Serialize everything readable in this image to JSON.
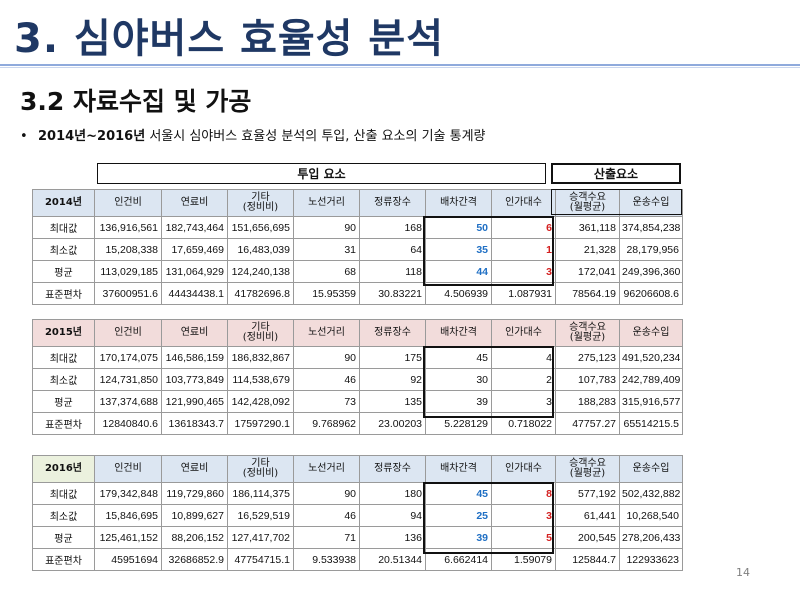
{
  "slide": {
    "title": "3. 심야버스 효율성 분석",
    "subtitle": "3.2 자료수집 및 가공",
    "bullet_marker": "•",
    "bullet_bold": "2014년~2016년",
    "bullet_rest": " 서울시 심야버스 효율성 분석의 투입, 산출 요소의 기술 통계량",
    "page_number": "14"
  },
  "groups": {
    "input_label": "투입 요소",
    "output_label": "산출요소"
  },
  "columns": [
    "인건비",
    "연료비",
    "기타\n(정비비)",
    "노선거리",
    "정류장수",
    "배차간격",
    "인가대수",
    "승객수요\n(월평균)",
    "운송수입"
  ],
  "tables": [
    {
      "year": "2014년",
      "rows": [
        {
          "label": "최대값",
          "cells": [
            "136,916,561",
            "182,743,464",
            "151,656,695",
            "90",
            "168",
            "50",
            "6",
            "361,118",
            "374,854,238"
          ]
        },
        {
          "label": "최소값",
          "cells": [
            "15,208,338",
            "17,659,469",
            "16,483,039",
            "31",
            "64",
            "35",
            "1",
            "21,328",
            "28,179,956"
          ]
        },
        {
          "label": "평균",
          "cells": [
            "113,029,185",
            "131,064,929",
            "124,240,138",
            "68",
            "118",
            "44",
            "3",
            "172,041",
            "249,396,360"
          ]
        },
        {
          "label": "표준편차",
          "cells": [
            "37600951.6",
            "44434438.1",
            "41782696.8",
            "15.95359",
            "30.83221",
            "4.506939",
            "1.087931",
            "78564.19",
            "96206608.6"
          ]
        }
      ]
    },
    {
      "year": "2015년",
      "rows": [
        {
          "label": "최대값",
          "cells": [
            "170,174,075",
            "146,586,159",
            "186,832,867",
            "90",
            "175",
            "45",
            "4",
            "275,123",
            "491,520,234"
          ]
        },
        {
          "label": "최소값",
          "cells": [
            "124,731,850",
            "103,773,849",
            "114,538,679",
            "46",
            "92",
            "30",
            "2",
            "107,783",
            "242,789,409"
          ]
        },
        {
          "label": "평균",
          "cells": [
            "137,374,688",
            "121,990,465",
            "142,428,092",
            "73",
            "135",
            "39",
            "3",
            "188,283",
            "315,916,577"
          ]
        },
        {
          "label": "표준편차",
          "cells": [
            "12840840.6",
            "13618343.7",
            "17597290.1",
            "9.768962",
            "23.00203",
            "5.228129",
            "0.718022",
            "47757.27",
            "65514215.5"
          ]
        }
      ]
    },
    {
      "year": "2016년",
      "rows": [
        {
          "label": "최대값",
          "cells": [
            "179,342,848",
            "119,729,860",
            "186,114,375",
            "90",
            "180",
            "45",
            "8",
            "577,192",
            "502,432,882"
          ]
        },
        {
          "label": "최소값",
          "cells": [
            "15,846,695",
            "10,899,627",
            "16,529,519",
            "46",
            "94",
            "25",
            "3",
            "61,441",
            "10,268,540"
          ]
        },
        {
          "label": "평균",
          "cells": [
            "125,461,152",
            "88,206,152",
            "127,417,702",
            "71",
            "136",
            "39",
            "5",
            "200,545",
            "278,206,433"
          ]
        },
        {
          "label": "표준편차",
          "cells": [
            "45951694",
            "32686852.9",
            "47754715.1",
            "9.533938",
            "20.51344",
            "6.662414",
            "1.59079",
            "125844.7",
            "122933623"
          ]
        }
      ]
    }
  ],
  "colors": {
    "title": "#1f3864",
    "header_2014": "#dbe5f1",
    "header_2015": "#f2dcdb",
    "header_2016": "#ebf1de",
    "highlight_blue": "#1f6fc4",
    "highlight_red": "#d42020"
  }
}
